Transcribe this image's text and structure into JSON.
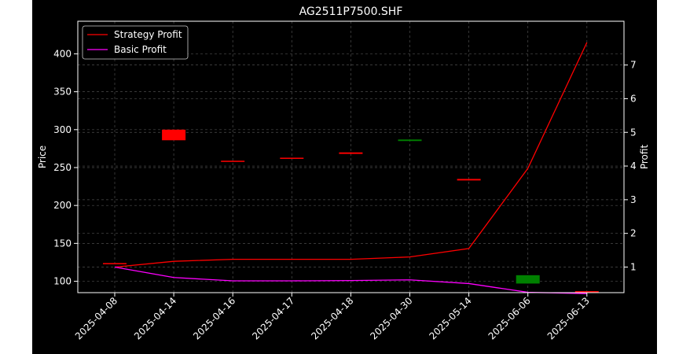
{
  "colors": {
    "background": "#000000",
    "outer_background": "#ffffff",
    "text": "#ffffff",
    "strategy_line": "#ff0000",
    "basic_line": "#ff00ff",
    "up_candle": "#ff0000",
    "down_candle": "#008000"
  },
  "chart_data": {
    "type": "candlestick+line",
    "title": "AG2511P7500.SHF",
    "xlabel": "",
    "ylabel_left": "Price",
    "ylabel_right": "Profit",
    "ylim_left": [
      85,
      443
    ],
    "ylim_right": [
      0.24,
      8.3
    ],
    "yticks_left": [
      "100",
      "150",
      "200",
      "250",
      "300",
      "350",
      "400"
    ],
    "yticks_right": [
      "1",
      "2",
      "3",
      "4",
      "5",
      "6",
      "7"
    ],
    "grid": true,
    "legend_position": "top-left",
    "categories": [
      "2025-04-08",
      "2025-04-14",
      "2025-04-16",
      "2025-04-17",
      "2025-04-18",
      "2025-04-30",
      "2025-05-14",
      "2025-06-06",
      "2025-06-13"
    ],
    "candles": [
      {
        "open": 124,
        "close": 124,
        "high": 124,
        "low": 124
      },
      {
        "open": 286,
        "close": 300,
        "high": 300,
        "low": 286
      },
      {
        "open": 258,
        "close": 259,
        "high": 259,
        "low": 258
      },
      {
        "open": 262,
        "close": 263,
        "high": 263,
        "low": 262
      },
      {
        "open": 268,
        "close": 270,
        "high": 270,
        "low": 268
      },
      {
        "open": 287,
        "close": 285,
        "high": 287,
        "low": 285
      },
      {
        "open": 233,
        "close": 235,
        "high": 235,
        "low": 233
      },
      {
        "open": 108,
        "close": 97,
        "high": 108,
        "low": 97
      },
      {
        "open": 86,
        "close": 87,
        "high": 87,
        "low": 86
      }
    ],
    "series": [
      {
        "name": "Strategy Profit",
        "axis": "right",
        "color": "#ff0000",
        "values": [
          1.0,
          1.17,
          1.23,
          1.23,
          1.23,
          1.3,
          1.55,
          3.93,
          7.67
        ]
      },
      {
        "name": "Basic Profit",
        "axis": "right",
        "color": "#ff00ff",
        "values": [
          1.0,
          0.69,
          0.59,
          0.59,
          0.6,
          0.62,
          0.51,
          0.25,
          0.21
        ]
      }
    ]
  }
}
